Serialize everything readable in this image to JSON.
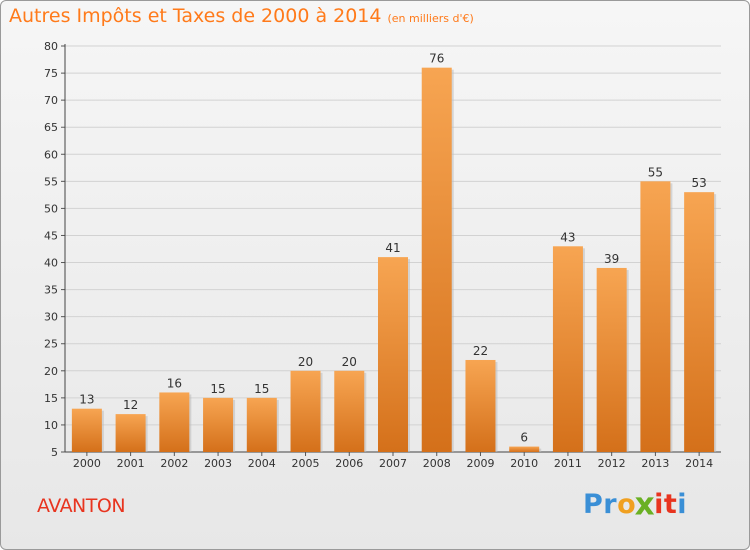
{
  "chart_data": {
    "type": "bar",
    "title": "Autres Impôts et Taxes de 2000 à 2014",
    "subtitle": "(en milliers d'€)",
    "xlabel": "",
    "ylabel": "",
    "categories": [
      "2000",
      "2001",
      "2002",
      "2003",
      "2004",
      "2005",
      "2006",
      "2007",
      "2008",
      "2009",
      "2010",
      "2011",
      "2012",
      "2013",
      "2014"
    ],
    "values": [
      13,
      12,
      16,
      15,
      15,
      20,
      20,
      41,
      76,
      22,
      6,
      43,
      39,
      55,
      53
    ],
    "data_labels": [
      "13",
      "12",
      "16",
      "15",
      "15",
      "20",
      "20",
      "41",
      "76",
      "22",
      "6",
      "43",
      "39",
      "55",
      "53"
    ],
    "ylim": [
      5,
      80
    ],
    "yticks": [
      "5",
      "10",
      "15",
      "20",
      "25",
      "30",
      "35",
      "40",
      "45",
      "50",
      "55",
      "60",
      "65",
      "70",
      "75",
      "80"
    ],
    "grid": true,
    "legend": "none",
    "bar_color_top": "#f7a552",
    "bar_color_bottom": "#d4701a"
  },
  "place_name": "AVANTON",
  "brand": {
    "name": "Proxiti",
    "letters": [
      {
        "ch": "P",
        "color": "#3a8fd6"
      },
      {
        "ch": "r",
        "color": "#3a8fd6"
      },
      {
        "ch": "o",
        "color": "#f0a020"
      },
      {
        "ch": "x",
        "color": "#6ab023"
      },
      {
        "ch": "i",
        "color": "#e8341f"
      },
      {
        "ch": "t",
        "color": "#e8341f"
      },
      {
        "ch": "i",
        "color": "#3a8fd6"
      }
    ]
  }
}
